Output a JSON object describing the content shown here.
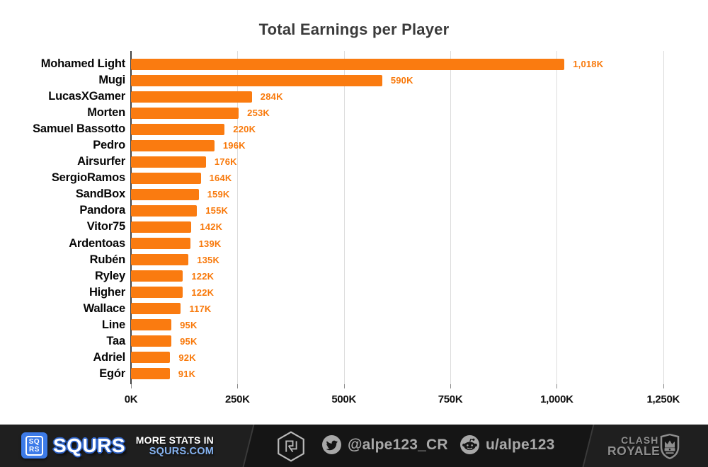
{
  "title": "Total Earnings per Player",
  "colors": {
    "bar": "#FA7B10",
    "value_label": "#F8790B",
    "title_text": "#3B3B3B",
    "grid": "#DCDCDC",
    "axis_spine": "#424242",
    "footer_bg": "#1F1F1F",
    "footer_mid_bg": "#151515",
    "squrs_blue": "#3D7BE8",
    "squrs_com_blue": "#85B2F0",
    "footer_gray": "#A8A8A8"
  },
  "chart_data": {
    "type": "bar",
    "orientation": "horizontal",
    "title": "Total Earnings per Player",
    "xlabel": "",
    "ylabel": "",
    "unit": "K",
    "grid": true,
    "legend": false,
    "xlim": [
      0,
      1292
    ],
    "categories": [
      "Mohamed Light",
      "Mugi",
      "LucasXGamer",
      "Morten",
      "Samuel Bassotto",
      "Pedro",
      "Airsurfer",
      "SergioRamos",
      "SandBox",
      "Pandora",
      "Vitor75",
      "Ardentoas",
      "Rubén",
      "Ryley",
      "Higher",
      "Wallace",
      "Line",
      "Taa",
      "Adriel",
      "Egór"
    ],
    "values": [
      1018,
      590,
      284,
      253,
      220,
      196,
      176,
      164,
      159,
      155,
      142,
      139,
      135,
      122,
      122,
      117,
      95,
      95,
      92,
      91
    ],
    "value_labels": [
      "1,018K",
      "590K",
      "284K",
      "253K",
      "220K",
      "196K",
      "176K",
      "164K",
      "159K",
      "155K",
      "142K",
      "139K",
      "135K",
      "122K",
      "122K",
      "117K",
      "95K",
      "95K",
      "92K",
      "91K"
    ],
    "x_ticks": [
      {
        "value": 0,
        "label": "0K"
      },
      {
        "value": 250,
        "label": "250K"
      },
      {
        "value": 500,
        "label": "500K"
      },
      {
        "value": 750,
        "label": "750K"
      },
      {
        "value": 1000,
        "label": "1,000K"
      },
      {
        "value": 1250,
        "label": "1,250K"
      }
    ]
  },
  "footer": {
    "squrs_badge_line1": "SQ",
    "squrs_badge_line2": "RS",
    "squrs_wordmark": "SQURS",
    "more_stats_line1": "MORE STATS IN",
    "more_stats_line2": "SQURS.COM",
    "twitter_handle": "@alpe123_CR",
    "reddit_handle": "u/alpe123",
    "clash_line1": "CLASH",
    "clash_line2": "ROYALE",
    "icons": {
      "squrs_badge": "squrs-logo-badge",
      "hexagon": "royaleapi-hexagon-logo",
      "twitter": "twitter-bird-icon",
      "reddit": "reddit-alien-icon",
      "shield": "clash-royale-shield-icon"
    }
  }
}
